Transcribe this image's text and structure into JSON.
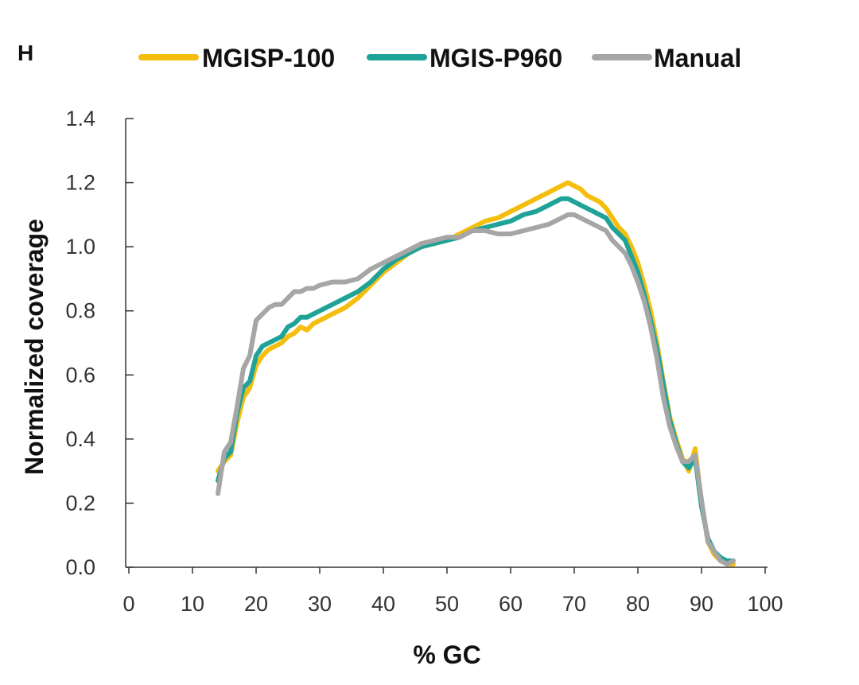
{
  "panel_label": "H",
  "chart_data": {
    "type": "line",
    "title": "",
    "xlabel": "% GC",
    "ylabel": "Normalized coverage",
    "xlim": [
      0,
      100
    ],
    "ylim": [
      0,
      1.4
    ],
    "x_ticks": [
      "0",
      "10",
      "20",
      "30",
      "40",
      "50",
      "60",
      "70",
      "80",
      "90",
      "100"
    ],
    "y_ticks": [
      "0.0",
      "0.2",
      "0.4",
      "0.6",
      "0.8",
      "1.0",
      "1.2",
      "1.4"
    ],
    "grid": false,
    "legend_position": "top",
    "series": [
      {
        "name": "MGISP-100",
        "color": "#F5BE0F",
        "x": [
          14,
          15,
          16,
          17,
          18,
          19,
          20,
          21,
          22,
          23,
          24,
          25,
          26,
          27,
          28,
          29,
          30,
          32,
          34,
          36,
          38,
          40,
          42,
          44,
          46,
          48,
          50,
          52,
          54,
          56,
          58,
          60,
          62,
          64,
          66,
          67,
          68,
          69,
          70,
          71,
          72,
          73,
          74,
          75,
          76,
          77,
          78,
          79,
          80,
          81,
          82,
          83,
          84,
          85,
          86,
          87,
          88,
          89,
          90,
          91,
          92,
          93,
          94,
          95
        ],
        "values": [
          0.3,
          0.33,
          0.35,
          0.45,
          0.53,
          0.56,
          0.63,
          0.66,
          0.68,
          0.69,
          0.7,
          0.72,
          0.73,
          0.75,
          0.74,
          0.76,
          0.77,
          0.79,
          0.81,
          0.84,
          0.88,
          0.92,
          0.95,
          0.98,
          1.0,
          1.01,
          1.02,
          1.04,
          1.06,
          1.08,
          1.09,
          1.11,
          1.13,
          1.15,
          1.17,
          1.18,
          1.19,
          1.2,
          1.19,
          1.18,
          1.16,
          1.15,
          1.14,
          1.12,
          1.09,
          1.06,
          1.04,
          1.0,
          0.95,
          0.88,
          0.8,
          0.7,
          0.58,
          0.47,
          0.4,
          0.34,
          0.3,
          0.37,
          0.2,
          0.08,
          0.04,
          0.02,
          0.01,
          0.01
        ]
      },
      {
        "name": "MGIS-P960",
        "color": "#1FA398",
        "x": [
          14,
          15,
          16,
          17,
          18,
          19,
          20,
          21,
          22,
          23,
          24,
          25,
          26,
          27,
          28,
          29,
          30,
          32,
          34,
          36,
          38,
          40,
          42,
          44,
          46,
          48,
          50,
          52,
          54,
          56,
          58,
          60,
          62,
          64,
          66,
          67,
          68,
          69,
          70,
          71,
          72,
          73,
          74,
          75,
          76,
          77,
          78,
          79,
          80,
          81,
          82,
          83,
          84,
          85,
          86,
          87,
          88,
          89,
          90,
          91,
          92,
          93,
          94,
          95
        ],
        "values": [
          0.27,
          0.34,
          0.36,
          0.48,
          0.56,
          0.58,
          0.66,
          0.69,
          0.7,
          0.71,
          0.72,
          0.75,
          0.76,
          0.78,
          0.78,
          0.79,
          0.8,
          0.82,
          0.84,
          0.86,
          0.89,
          0.93,
          0.96,
          0.98,
          1.0,
          1.01,
          1.02,
          1.03,
          1.05,
          1.06,
          1.07,
          1.08,
          1.1,
          1.11,
          1.13,
          1.14,
          1.15,
          1.15,
          1.14,
          1.13,
          1.12,
          1.11,
          1.1,
          1.09,
          1.06,
          1.04,
          1.02,
          0.97,
          0.92,
          0.85,
          0.77,
          0.68,
          0.57,
          0.46,
          0.39,
          0.33,
          0.31,
          0.34,
          0.19,
          0.09,
          0.05,
          0.03,
          0.02,
          0.02
        ]
      },
      {
        "name": "Manual",
        "color": "#A6A6A6",
        "x": [
          14,
          15,
          16,
          17,
          18,
          19,
          20,
          21,
          22,
          23,
          24,
          25,
          26,
          27,
          28,
          29,
          30,
          32,
          34,
          36,
          38,
          40,
          42,
          44,
          46,
          48,
          50,
          52,
          54,
          56,
          58,
          60,
          62,
          64,
          66,
          67,
          68,
          69,
          70,
          71,
          72,
          73,
          74,
          75,
          76,
          77,
          78,
          79,
          80,
          81,
          82,
          83,
          84,
          85,
          86,
          87,
          88,
          89,
          90,
          91,
          92,
          93,
          94,
          95
        ],
        "values": [
          0.23,
          0.36,
          0.39,
          0.5,
          0.62,
          0.66,
          0.77,
          0.79,
          0.81,
          0.82,
          0.82,
          0.84,
          0.86,
          0.86,
          0.87,
          0.87,
          0.88,
          0.89,
          0.89,
          0.9,
          0.93,
          0.95,
          0.97,
          0.99,
          1.01,
          1.02,
          1.03,
          1.03,
          1.05,
          1.05,
          1.04,
          1.04,
          1.05,
          1.06,
          1.07,
          1.08,
          1.09,
          1.1,
          1.1,
          1.09,
          1.08,
          1.07,
          1.06,
          1.05,
          1.02,
          1.0,
          0.98,
          0.94,
          0.89,
          0.83,
          0.75,
          0.65,
          0.53,
          0.44,
          0.38,
          0.33,
          0.33,
          0.35,
          0.21,
          0.08,
          0.05,
          0.02,
          0.01,
          0.02
        ]
      }
    ]
  }
}
